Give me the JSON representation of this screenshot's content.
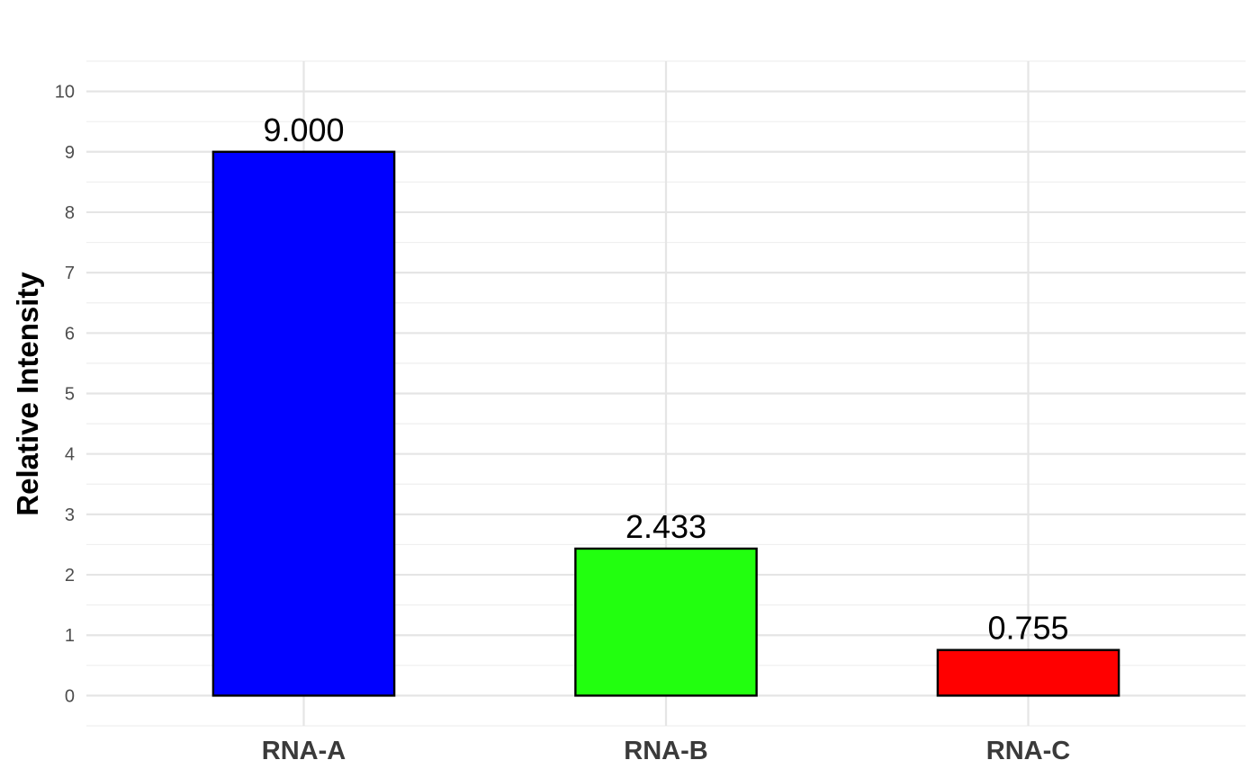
{
  "chart_data": {
    "type": "bar",
    "title": "",
    "xlabel": "",
    "ylabel": "Relative Intensity",
    "categories": [
      "RNA-A",
      "RNA-B",
      "RNA-C"
    ],
    "values": [
      9.0,
      2.433,
      0.755
    ],
    "data_labels": [
      "9.000",
      "2.433",
      "0.755"
    ],
    "colors": [
      "#0000ff",
      "#22ff0f",
      "#ff0000"
    ],
    "bar_outline_color": "#000000",
    "ylim": [
      -0.5,
      10.5
    ],
    "y_ticks": [
      0,
      1,
      2,
      3,
      4,
      5,
      6,
      7,
      8,
      9,
      10
    ],
    "y_tick_labels": [
      "0",
      "1",
      "2",
      "3",
      "4",
      "5",
      "6",
      "7",
      "8",
      "9",
      "10"
    ],
    "grid": true,
    "legend": "none"
  }
}
